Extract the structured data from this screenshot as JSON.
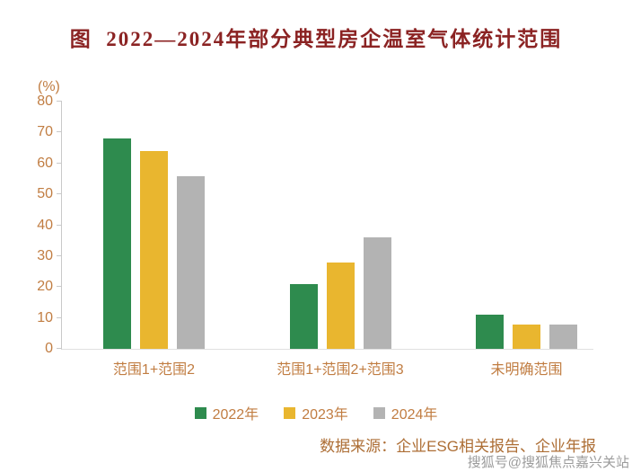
{
  "title": "图  2022—2024年部分典型房企温室气体统计范围",
  "unit_label": "(%)",
  "chart_data": {
    "type": "bar",
    "title": "2022—2024年部分典型房企温室气体统计范围",
    "categories": [
      "范围1+范围2",
      "范围1+范围2+范围3",
      "未明确范围"
    ],
    "series": [
      {
        "name": "2022年",
        "color": "#2e8b4e",
        "values": [
          68,
          21,
          11
        ]
      },
      {
        "name": "2023年",
        "color": "#e9b62f",
        "values": [
          64,
          28,
          8
        ]
      },
      {
        "name": "2024年",
        "color": "#b3b3b3",
        "values": [
          56,
          36,
          8
        ]
      }
    ],
    "xlabel": "",
    "ylabel": "(%)",
    "ylim": [
      0,
      80
    ],
    "yticks": [
      0,
      10,
      20,
      30,
      40,
      50,
      60,
      70,
      80
    ],
    "grid": false,
    "legend_position": "bottom"
  },
  "source_note": "数据来源：企业ESG相关报告、企业年报",
  "watermark": "搜狐号@搜狐焦点嘉兴关站",
  "colors": {
    "title_text": "#8b2323",
    "axis_text": "#c17d42",
    "axis_line": "#c9c9c9",
    "source_text": "#ad6e35",
    "watermark_text": "#8a8a8a"
  }
}
